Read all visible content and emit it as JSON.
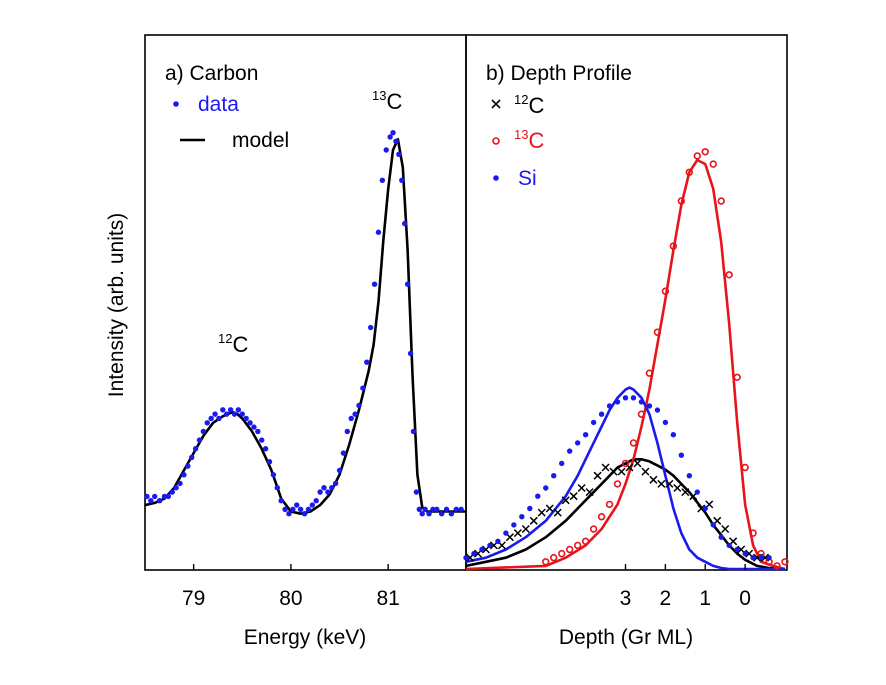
{
  "figure": {
    "ylabel": "Intensity (arb. units)",
    "colors": {
      "data": "#1a1aee",
      "model": "#000000",
      "c12": "#000000",
      "c13": "#e8141c",
      "si": "#1a1aee"
    }
  },
  "chart_data": [
    {
      "type": "line",
      "title": "a) Carbon",
      "xlabel": "Energy (keV)",
      "ylabel": "Intensity (arb. units)",
      "xlim": [
        78.5,
        81.8
      ],
      "ylim": [
        0,
        1
      ],
      "xticks": [
        79,
        80,
        81
      ],
      "xtick_labels": [
        "79",
        "80",
        "81"
      ],
      "legend": [
        {
          "name": "data",
          "marker": "dot"
        },
        {
          "name": "model",
          "marker": "line"
        }
      ],
      "annotations": [
        {
          "text_sup": "12",
          "text": "C",
          "x": 79.55,
          "y": 0.53
        },
        {
          "text_sup": "13",
          "text": "C",
          "x": 81.05,
          "y": 1.03
        }
      ],
      "series": [
        {
          "name": "data",
          "style": "dots",
          "x": [
            78.52,
            78.56,
            78.6,
            78.65,
            78.7,
            78.74,
            78.78,
            78.82,
            78.86,
            78.9,
            78.94,
            78.98,
            79.02,
            79.06,
            79.1,
            79.14,
            79.18,
            79.22,
            79.26,
            79.3,
            79.34,
            79.38,
            79.42,
            79.46,
            79.5,
            79.54,
            79.58,
            79.62,
            79.66,
            79.7,
            79.74,
            79.78,
            79.82,
            79.86,
            79.9,
            79.94,
            79.98,
            80.02,
            80.06,
            80.1,
            80.14,
            80.18,
            80.22,
            80.26,
            80.3,
            80.34,
            80.38,
            80.42,
            80.46,
            80.5,
            80.54,
            80.58,
            80.62,
            80.66,
            80.7,
            80.74,
            80.78,
            80.82,
            80.86,
            80.9,
            80.94,
            80.98,
            81.02,
            81.05,
            81.08,
            81.11,
            81.14,
            81.17,
            81.2,
            81.23,
            81.26,
            81.29,
            81.32,
            81.35,
            81.38,
            81.42,
            81.46,
            81.5,
            81.55,
            81.6,
            81.65,
            81.7,
            81.75
          ],
          "y": [
            0.17,
            0.16,
            0.17,
            0.16,
            0.17,
            0.17,
            0.18,
            0.19,
            0.2,
            0.22,
            0.24,
            0.26,
            0.28,
            0.3,
            0.32,
            0.34,
            0.35,
            0.36,
            0.35,
            0.37,
            0.36,
            0.37,
            0.36,
            0.37,
            0.36,
            0.35,
            0.34,
            0.33,
            0.32,
            0.3,
            0.28,
            0.25,
            0.22,
            0.19,
            0.16,
            0.14,
            0.13,
            0.14,
            0.15,
            0.14,
            0.13,
            0.14,
            0.15,
            0.16,
            0.18,
            0.19,
            0.18,
            0.19,
            0.2,
            0.23,
            0.27,
            0.32,
            0.35,
            0.36,
            0.38,
            0.42,
            0.48,
            0.56,
            0.66,
            0.78,
            0.9,
            0.97,
            1.0,
            1.01,
            0.99,
            0.96,
            0.9,
            0.8,
            0.66,
            0.5,
            0.32,
            0.18,
            0.14,
            0.13,
            0.14,
            0.13,
            0.14,
            0.14,
            0.13,
            0.14,
            0.13,
            0.14,
            0.14
          ]
        },
        {
          "name": "model",
          "style": "line",
          "x": [
            78.5,
            78.6,
            78.7,
            78.8,
            78.9,
            79.0,
            79.1,
            79.2,
            79.3,
            79.4,
            79.45,
            79.5,
            79.6,
            79.7,
            79.8,
            79.9,
            80.0,
            80.1,
            80.2,
            80.3,
            80.4,
            80.5,
            80.6,
            80.7,
            80.8,
            80.85,
            80.9,
            80.95,
            81.0,
            81.05,
            81.1,
            81.15,
            81.2,
            81.25,
            81.3,
            81.35,
            81.4,
            81.5,
            81.6,
            81.8
          ],
          "y": [
            0.15,
            0.155,
            0.165,
            0.19,
            0.23,
            0.27,
            0.31,
            0.34,
            0.355,
            0.365,
            0.36,
            0.35,
            0.32,
            0.28,
            0.23,
            0.165,
            0.135,
            0.13,
            0.135,
            0.15,
            0.175,
            0.22,
            0.29,
            0.37,
            0.46,
            0.52,
            0.62,
            0.76,
            0.88,
            0.97,
            0.995,
            0.93,
            0.74,
            0.45,
            0.22,
            0.145,
            0.135,
            0.135,
            0.135,
            0.135
          ]
        }
      ]
    },
    {
      "type": "line",
      "title": "b) Depth Profile",
      "xlabel": "Depth (Gr ML)",
      "xlim": [
        7.0,
        -1.05
      ],
      "ylim": [
        0,
        1
      ],
      "x_reversed": true,
      "xticks": [
        3,
        2,
        1,
        0
      ],
      "xtick_labels": [
        "3",
        "2",
        "1",
        "0"
      ],
      "legend": [
        {
          "name_sup": "12",
          "name": "C",
          "marker": "cross",
          "color_key": "c12"
        },
        {
          "name_sup": "13",
          "name": "C",
          "marker": "circle",
          "color_key": "c13"
        },
        {
          "name": "Si",
          "marker": "dot",
          "color_key": "si"
        }
      ],
      "series": [
        {
          "name": "12C data",
          "style": "cross",
          "color_key": "c12",
          "x": [
            6.9,
            6.7,
            6.5,
            6.3,
            6.1,
            5.9,
            5.7,
            5.5,
            5.3,
            5.1,
            4.9,
            4.7,
            4.5,
            4.3,
            4.1,
            3.9,
            3.7,
            3.5,
            3.3,
            3.1,
            2.9,
            2.7,
            2.5,
            2.3,
            2.1,
            1.9,
            1.7,
            1.5,
            1.3,
            1.1,
            0.9,
            0.7,
            0.5,
            0.3,
            0.1,
            -0.1,
            -0.3,
            -0.5
          ],
          "y": [
            0.03,
            0.04,
            0.05,
            0.06,
            0.06,
            0.08,
            0.09,
            0.1,
            0.12,
            0.14,
            0.15,
            0.14,
            0.17,
            0.18,
            0.2,
            0.19,
            0.23,
            0.25,
            0.24,
            0.24,
            0.25,
            0.26,
            0.24,
            0.22,
            0.21,
            0.21,
            0.2,
            0.19,
            0.18,
            0.15,
            0.16,
            0.12,
            0.1,
            0.07,
            0.05,
            0.04,
            0.03,
            0.03
          ]
        },
        {
          "name": "13C data",
          "style": "circle",
          "color_key": "c13",
          "x": [
            5.0,
            4.8,
            4.6,
            4.4,
            4.2,
            4.0,
            3.8,
            3.6,
            3.4,
            3.2,
            3.0,
            2.8,
            2.6,
            2.4,
            2.2,
            2.0,
            1.8,
            1.6,
            1.4,
            1.2,
            1.0,
            0.8,
            0.6,
            0.4,
            0.2,
            0.0,
            -0.2,
            -0.4,
            -0.6,
            -0.8,
            -1.0
          ],
          "y": [
            0.02,
            0.03,
            0.04,
            0.05,
            0.06,
            0.07,
            0.1,
            0.13,
            0.16,
            0.21,
            0.26,
            0.31,
            0.38,
            0.48,
            0.58,
            0.68,
            0.79,
            0.9,
            0.97,
            1.01,
            1.02,
            0.99,
            0.9,
            0.72,
            0.47,
            0.25,
            0.09,
            0.04,
            0.02,
            0.01,
            0.02
          ]
        },
        {
          "name": "Si data",
          "style": "dots",
          "color_key": "si",
          "x": [
            7.0,
            6.8,
            6.6,
            6.4,
            6.2,
            6.0,
            5.8,
            5.6,
            5.4,
            5.2,
            5.0,
            4.8,
            4.6,
            4.4,
            4.2,
            4.0,
            3.8,
            3.6,
            3.4,
            3.2,
            3.0,
            2.8,
            2.6,
            2.4,
            2.2,
            2.0,
            1.8,
            1.6,
            1.4,
            1.2,
            1.0,
            0.8,
            0.6,
            0.4,
            0.2,
            0.0,
            -0.2,
            -0.4,
            -0.6
          ],
          "y": [
            0.03,
            0.04,
            0.05,
            0.06,
            0.07,
            0.09,
            0.11,
            0.13,
            0.15,
            0.18,
            0.2,
            0.23,
            0.26,
            0.29,
            0.31,
            0.33,
            0.36,
            0.38,
            0.4,
            0.41,
            0.42,
            0.42,
            0.41,
            0.4,
            0.39,
            0.36,
            0.33,
            0.28,
            0.23,
            0.19,
            0.15,
            0.11,
            0.08,
            0.06,
            0.05,
            0.04,
            0.03,
            0.03,
            0.03
          ]
        },
        {
          "name": "12C model",
          "style": "line",
          "color_key": "c12",
          "x": [
            7.0,
            6.5,
            6.0,
            5.5,
            5.0,
            4.5,
            4.0,
            3.5,
            3.2,
            3.0,
            2.8,
            2.6,
            2.4,
            2.2,
            2.0,
            1.8,
            1.6,
            1.4,
            1.2,
            1.0,
            0.8,
            0.6,
            0.4,
            0.2,
            0.0,
            -0.3,
            -0.6,
            -1.0
          ],
          "y": [
            0.01,
            0.02,
            0.03,
            0.05,
            0.08,
            0.12,
            0.17,
            0.22,
            0.25,
            0.26,
            0.27,
            0.27,
            0.265,
            0.255,
            0.245,
            0.23,
            0.21,
            0.19,
            0.165,
            0.14,
            0.11,
            0.085,
            0.06,
            0.04,
            0.025,
            0.01,
            0.005,
            0.0
          ]
        },
        {
          "name": "13C model",
          "style": "line",
          "color_key": "c13",
          "x": [
            5.0,
            4.5,
            4.0,
            3.6,
            3.2,
            3.0,
            2.8,
            2.6,
            2.4,
            2.2,
            2.0,
            1.8,
            1.6,
            1.4,
            1.2,
            1.0,
            0.8,
            0.6,
            0.4,
            0.2,
            0.0,
            -0.2,
            -0.4,
            -0.7,
            -1.0
          ],
          "y": [
            0.01,
            0.03,
            0.06,
            0.1,
            0.16,
            0.21,
            0.27,
            0.35,
            0.44,
            0.55,
            0.66,
            0.78,
            0.89,
            0.97,
            1.0,
            0.99,
            0.93,
            0.8,
            0.6,
            0.36,
            0.16,
            0.06,
            0.02,
            0.01,
            0.0
          ],
          "x_extend": [
            7.0,
            5.0
          ],
          "y_extend": [
            0.0,
            0.01
          ]
        },
        {
          "name": "Si model",
          "style": "line",
          "color_key": "si",
          "x": [
            7.0,
            6.5,
            6.0,
            5.5,
            5.0,
            4.5,
            4.2,
            4.0,
            3.8,
            3.6,
            3.4,
            3.2,
            3.0,
            2.9,
            2.8,
            2.6,
            2.4,
            2.2,
            2.0,
            1.8,
            1.6,
            1.4,
            1.2,
            1.0,
            0.8,
            0.6,
            0.4,
            0.2,
            0.0,
            -0.4,
            -1.0
          ],
          "y": [
            0.02,
            0.03,
            0.05,
            0.08,
            0.12,
            0.18,
            0.23,
            0.27,
            0.31,
            0.35,
            0.39,
            0.42,
            0.44,
            0.445,
            0.44,
            0.42,
            0.38,
            0.31,
            0.23,
            0.15,
            0.09,
            0.05,
            0.03,
            0.02,
            0.01,
            0.005,
            0.0,
            0.0,
            0.0,
            0.0,
            0.0
          ]
        }
      ]
    }
  ]
}
